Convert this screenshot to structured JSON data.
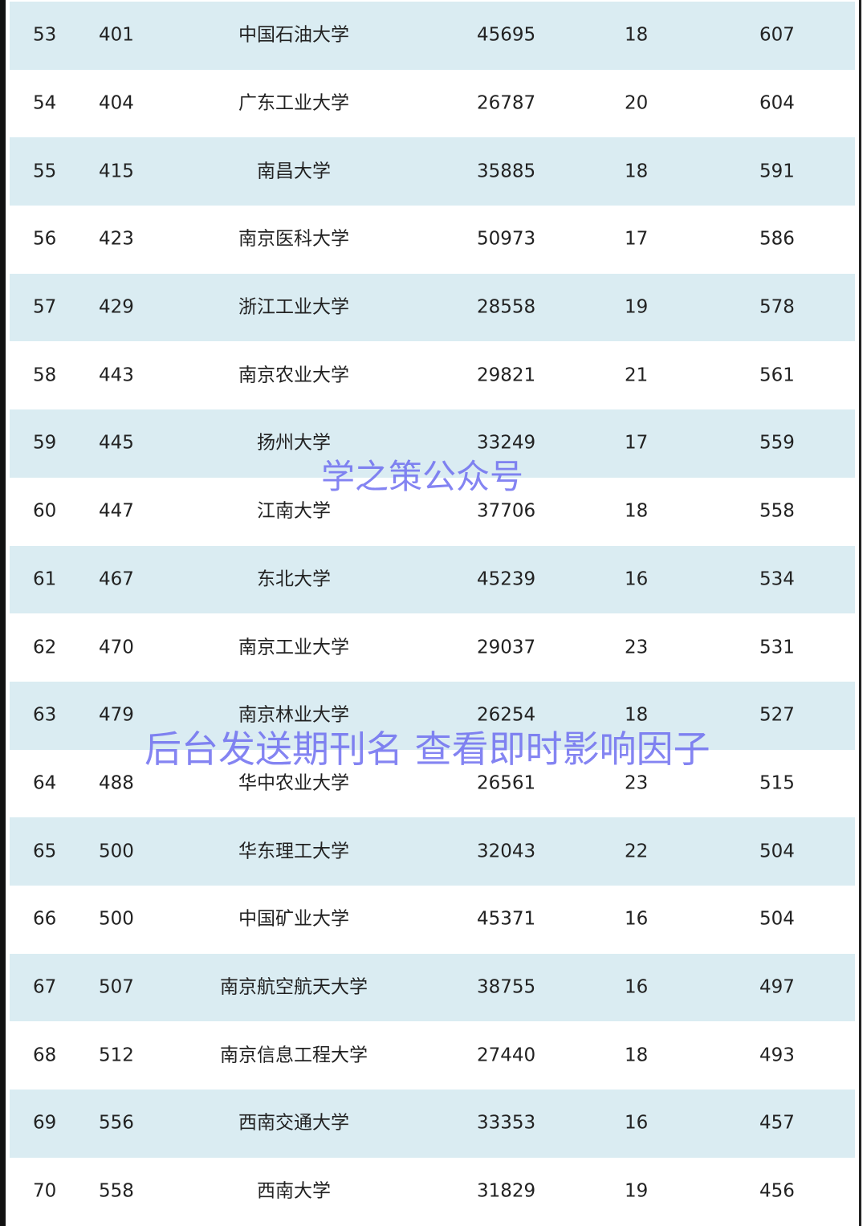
{
  "rows": [
    [
      "53",
      "401",
      "中国石油大学",
      "45695",
      "18",
      "607"
    ],
    [
      "54",
      "404",
      "广东工业大学",
      "26787",
      "20",
      "604"
    ],
    [
      "55",
      "415",
      "南昌大学",
      "35885",
      "18",
      "591"
    ],
    [
      "56",
      "423",
      "南京医科大学",
      "50973",
      "17",
      "586"
    ],
    [
      "57",
      "429",
      "浙江工业大学",
      "28558",
      "19",
      "578"
    ],
    [
      "58",
      "443",
      "南京农业大学",
      "29821",
      "21",
      "561"
    ],
    [
      "59",
      "445",
      "扬州大学",
      "33249",
      "17",
      "559"
    ],
    [
      "60",
      "447",
      "江南大学",
      "37706",
      "18",
      "558"
    ],
    [
      "61",
      "467",
      "东北大学",
      "45239",
      "16",
      "534"
    ],
    [
      "62",
      "470",
      "南京工业大学",
      "29037",
      "23",
      "531"
    ],
    [
      "63",
      "479",
      "南京林业大学",
      "26254",
      "18",
      "527"
    ],
    [
      "64",
      "488",
      "华中农业大学",
      "26561",
      "23",
      "515"
    ],
    [
      "65",
      "500",
      "华东理工大学",
      "32043",
      "22",
      "504"
    ],
    [
      "66",
      "500",
      "中国矿业大学",
      "45371",
      "16",
      "504"
    ],
    [
      "67",
      "507",
      "南京航空航天大学",
      "38755",
      "16",
      "497"
    ],
    [
      "68",
      "512",
      "南京信息工程大学",
      "27440",
      "18",
      "493"
    ],
    [
      "69",
      "556",
      "西南交通大学",
      "33353",
      "16",
      "457"
    ],
    [
      "70",
      "558",
      "西南大学",
      "31829",
      "19",
      "456"
    ]
  ],
  "watermarks": {
    "top": "学之策公众号",
    "middle": "后台发送期刊名 查看即时影响因子"
  },
  "colors": {
    "row_alt": "#daecf2",
    "watermark": "#6f6ff0"
  }
}
